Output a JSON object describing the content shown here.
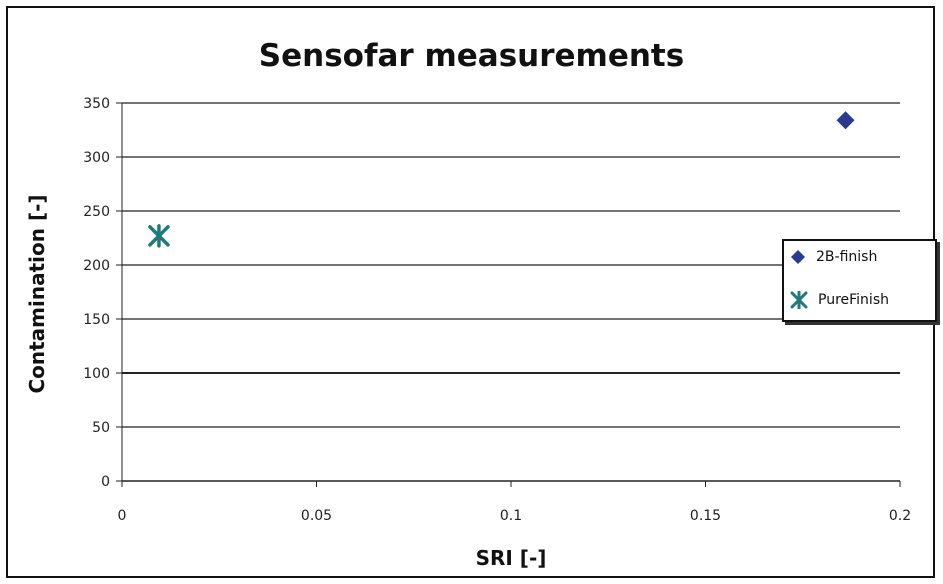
{
  "chart_data": {
    "type": "scatter",
    "title": "Sensofar measurements",
    "xlabel": "SRI [-]",
    "ylabel": "Contamination [-]",
    "xlim": [
      0,
      0.2
    ],
    "ylim": [
      0,
      350
    ],
    "x_ticks": [
      "0",
      "0.05",
      "0.1",
      "0.15",
      "0.2"
    ],
    "y_ticks": [
      "0",
      "50",
      "100",
      "150",
      "200",
      "250",
      "300",
      "350"
    ],
    "grid": "horizontal",
    "legend_position": "right",
    "series": [
      {
        "name": "2B-finish",
        "marker": "diamond",
        "color": "#2b3a8f",
        "points": [
          {
            "x": 0.186,
            "y": 334
          }
        ]
      },
      {
        "name": "PureFinish",
        "marker": "asterisk",
        "color": "#1f7a7a",
        "points": [
          {
            "x": 0.0095,
            "y": 227
          }
        ]
      }
    ]
  }
}
